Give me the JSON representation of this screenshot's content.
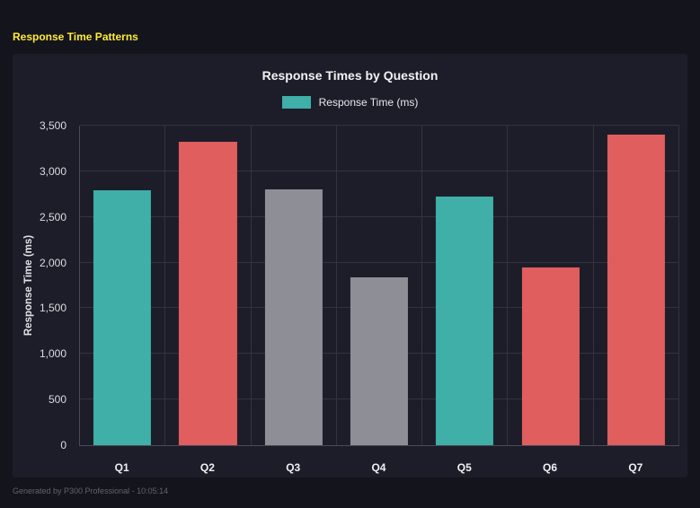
{
  "page": {
    "title": "Response Time Patterns",
    "title_color": "#ffeb3b",
    "footer": "Generated by P300 Professional - 10:05:14"
  },
  "chart_data": {
    "type": "bar",
    "title": "Response Times by Question",
    "legend": [
      {
        "label": "Response Time (ms)",
        "color": "#3fafa8"
      }
    ],
    "categories": [
      "Q1",
      "Q2",
      "Q3",
      "Q4",
      "Q5",
      "Q6",
      "Q7"
    ],
    "values": [
      2790,
      3320,
      2800,
      1840,
      2720,
      1950,
      3400
    ],
    "bar_colors": [
      "#3fafa8",
      "#e05e5e",
      "#8e8e96",
      "#8e8e96",
      "#3fafa8",
      "#e05e5e",
      "#e05e5e"
    ],
    "xlabel": "",
    "ylabel": "Response Time (ms)",
    "ylim": [
      0,
      3500
    ],
    "yticks": [
      0,
      500,
      1000,
      1500,
      2000,
      2500,
      3000,
      3500
    ],
    "ytick_labels": [
      "0",
      "500",
      "1,000",
      "1,500",
      "2,000",
      "2,500",
      "3,000",
      "3,500"
    ],
    "grid": true,
    "legend_position": "top"
  }
}
